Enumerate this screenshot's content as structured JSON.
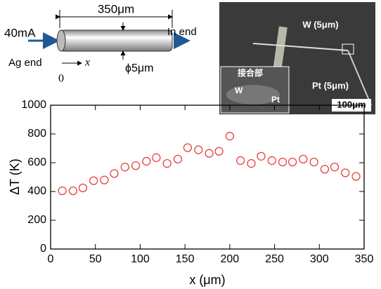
{
  "chart_data": {
    "type": "scatter",
    "xlabel": "x (μm)",
    "ylabel": "ΔT (K)",
    "x": [
      13,
      25,
      36,
      48,
      60,
      71,
      83,
      95,
      107,
      118,
      130,
      142,
      153,
      165,
      177,
      188,
      200,
      212,
      224,
      235,
      247,
      259,
      270,
      282,
      294,
      306,
      317,
      329,
      341
    ],
    "values": [
      405,
      405,
      425,
      475,
      480,
      525,
      570,
      580,
      610,
      635,
      595,
      625,
      705,
      690,
      665,
      680,
      785,
      615,
      595,
      645,
      615,
      605,
      605,
      625,
      605,
      555,
      570,
      530,
      505
    ],
    "color": "#e8413c",
    "xlim": [
      0,
      350
    ],
    "xticks": [
      0,
      50,
      100,
      150,
      200,
      250,
      300,
      350
    ],
    "ylim": [
      0,
      1000
    ],
    "yticks": [
      0,
      200,
      400,
      600,
      800,
      1000
    ]
  },
  "diagram": {
    "length": "350μm",
    "current": "40mA",
    "in_end": "In end",
    "ag_end": "Ag end",
    "x_axis": "x",
    "origin": "0",
    "diameter": "ϕ5μm"
  },
  "photo": {
    "w_label": "W (5μm)",
    "pt_label": "Pt (5μm)",
    "scale": "100μm",
    "inset_junction": "接合部",
    "inset_w": "W",
    "inset_pt": "Pt"
  }
}
